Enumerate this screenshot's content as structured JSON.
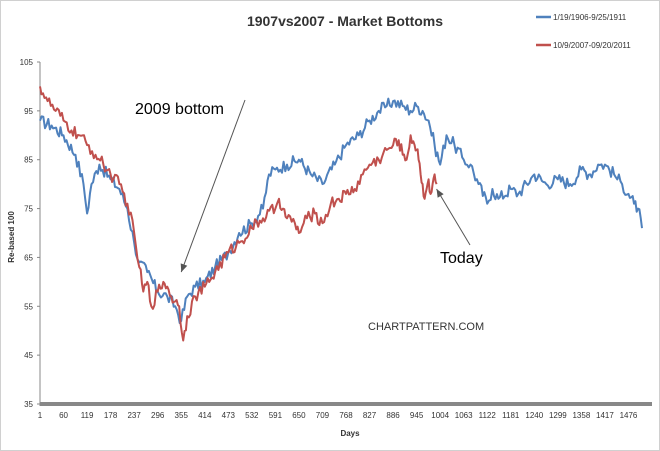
{
  "chart_data": {
    "type": "line",
    "title": "1907vs2007 - Market Bottoms",
    "xlabel": "Days",
    "ylabel": "Re-based 100",
    "xlim": [
      1,
      1535
    ],
    "ylim": [
      35,
      105
    ],
    "y_ticks": [
      35,
      45,
      55,
      65,
      75,
      85,
      95,
      105
    ],
    "x_ticks": [
      1,
      60,
      119,
      178,
      237,
      296,
      355,
      414,
      473,
      532,
      591,
      650,
      709,
      768,
      827,
      886,
      945,
      1004,
      1063,
      1122,
      1181,
      1240,
      1299,
      1358,
      1417,
      1476
    ],
    "grid": false,
    "legend_position": "top-right",
    "series": [
      {
        "name": "1/19/1906-9/25/1911",
        "color": "#4f81bd",
        "x": [
          1,
          30,
          60,
          90,
          110,
          119,
          130,
          150,
          178,
          200,
          220,
          237,
          250,
          270,
          296,
          320,
          340,
          355,
          370,
          390,
          414,
          440,
          473,
          500,
          532,
          560,
          575,
          591,
          620,
          650,
          680,
          709,
          740,
          768,
          800,
          827,
          850,
          870,
          886,
          910,
          930,
          945,
          960,
          975,
          990,
          1004,
          1020,
          1040,
          1063,
          1080,
          1100,
          1122,
          1135,
          1150,
          1181,
          1200,
          1240,
          1270,
          1299,
          1330,
          1358,
          1380,
          1400,
          1417,
          1440,
          1460,
          1476,
          1490,
          1500,
          1510
        ],
        "values": [
          93,
          92,
          90,
          86,
          80,
          74,
          80,
          84,
          81,
          79,
          75,
          68,
          64,
          62,
          58,
          57,
          55,
          52,
          57,
          59,
          60,
          63,
          66,
          70,
          72,
          75,
          82,
          83,
          84,
          85,
          82,
          80,
          84,
          88,
          90,
          93,
          95,
          96,
          97,
          96,
          95,
          96,
          95,
          93,
          88,
          84,
          90,
          88,
          85,
          84,
          80,
          76,
          79,
          77,
          79,
          78,
          82,
          80,
          81,
          80,
          83,
          82,
          84,
          84,
          82,
          80,
          78,
          76,
          75,
          71
        ]
      },
      {
        "name": "10/9/2007-09/20/2011",
        "color": "#c0504d",
        "x": [
          1,
          20,
          40,
          60,
          80,
          100,
          119,
          140,
          160,
          178,
          200,
          220,
          237,
          250,
          260,
          270,
          280,
          296,
          310,
          320,
          330,
          340,
          350,
          360,
          370,
          390,
          414,
          440,
          473,
          500,
          532,
          560,
          591,
          600,
          610,
          620,
          640,
          650,
          670,
          690,
          709,
          730,
          750,
          768,
          790,
          810,
          827,
          850,
          870,
          886,
          900,
          910,
          920,
          930,
          940,
          945,
          950,
          955,
          960,
          965,
          970,
          975,
          980,
          985,
          990,
          995
        ],
        "values": [
          100,
          97,
          95,
          93,
          91,
          90,
          88,
          86,
          84,
          82,
          80,
          76,
          70,
          63,
          58,
          60,
          55,
          58,
          60,
          59,
          57,
          56,
          55,
          48,
          53,
          57,
          59,
          62,
          66,
          68,
          71,
          73,
          75,
          77,
          75,
          73,
          72,
          70,
          73,
          74,
          72,
          76,
          77,
          78,
          79,
          82,
          84,
          85,
          87,
          88,
          89,
          86,
          85,
          90,
          88,
          87,
          85,
          82,
          80,
          77,
          79,
          81,
          78,
          80,
          82,
          80
        ]
      }
    ],
    "annotations": [
      {
        "text": "2009 bottom",
        "arrow_to": [
          355,
          62
        ]
      },
      {
        "text": "Today",
        "arrow_to": [
          995,
          79
        ]
      },
      {
        "text": "CHARTPATTERN.COM"
      }
    ]
  }
}
